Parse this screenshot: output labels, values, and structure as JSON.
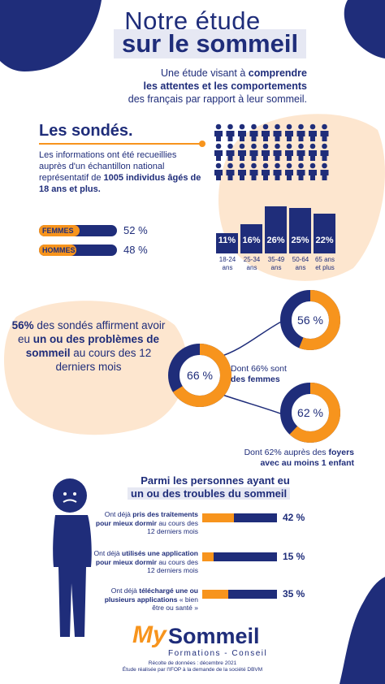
{
  "header": {
    "title_line1": "Notre étude",
    "title_line2": "sur le sommeil"
  },
  "intro": {
    "part1": "Une étude visant à ",
    "bold1": "comprendre",
    "bold2": "les attentes et les comportements",
    "part2": "des français par rapport à leur sommeil."
  },
  "sondes": {
    "heading": "Les sondés.",
    "text1": "Les informations ont été recueillies auprès d'un échantillon national représentatif de ",
    "bold": "1005 individus âgés de 18 ans et plus."
  },
  "gender": [
    {
      "label": "FEMMES",
      "value": 52,
      "value_text": "52 %"
    },
    {
      "label": "HOMMES",
      "value": 48,
      "value_text": "48 %"
    }
  ],
  "ages": [
    {
      "pct": "11%",
      "value": 11,
      "label": "18-24 ans"
    },
    {
      "pct": "16%",
      "value": 16,
      "label": "25-34 ans"
    },
    {
      "pct": "26%",
      "value": 26,
      "label": "35-49 ans"
    },
    {
      "pct": "25%",
      "value": 25,
      "label": "50-64 ans"
    },
    {
      "pct": "22%",
      "value": 22,
      "label": "65 ans et plus"
    }
  ],
  "problems": {
    "pct": "56%",
    "text1": " des sondés affirment avoir eu ",
    "bold": "un ou des problèmes de sommeil",
    "text2": " au cours des 12 derniers mois"
  },
  "donuts": {
    "main": {
      "label": "66 %",
      "value": 66
    },
    "top": {
      "label": "56 %",
      "value": 56
    },
    "bottom": {
      "label": "62 %",
      "value": 62
    },
    "caption_women_1": "Dont 66% sont",
    "caption_women_2": "des femmes",
    "caption_child_1": "Dont 62% auprès des ",
    "caption_child_bold1": "foyers",
    "caption_child_bold2": "avec au moins 1 enfant"
  },
  "troubles": {
    "title1": "Parmi les personnes ayant eu",
    "title2": "un ou des troubles du sommeil",
    "items": [
      {
        "pre": "Ont déjà ",
        "bold": "pris des traitements pour mieux dormir",
        "post": " au cours des 12 derniers mois",
        "value": 42,
        "value_text": "42 %"
      },
      {
        "pre": "Ont déjà ",
        "bold": "utilisés une application pour mieux dormir",
        "post": " au cours des 12 derniers mois",
        "value": 15,
        "value_text": "15 %"
      },
      {
        "pre": "Ont déjà ",
        "bold": "téléchargé une ou plusieurs applications",
        "post": " « bien être ou santé »",
        "value": 35,
        "value_text": "35 %"
      }
    ]
  },
  "logo": {
    "my": "My",
    "sommeil": "Sommeil",
    "sub": "Formations - Conseil"
  },
  "footer": {
    "line1": "Récolte de données : décembre 2021",
    "line2": "Étude réalisée par l'IFOP à la demande de la société DBVM"
  },
  "colors": {
    "navy": "#1f2d7a",
    "orange": "#f7941d",
    "peach": "#fde6cf",
    "lavender": "#e6e8f3"
  }
}
